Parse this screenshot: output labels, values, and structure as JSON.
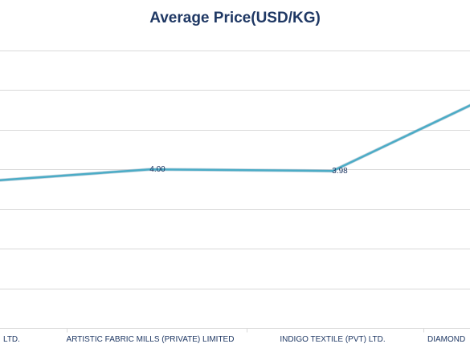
{
  "chart_data": {
    "type": "line",
    "title": "Average Price(USD/KG)",
    "xlabel": "",
    "ylabel": "",
    "categories": [
      "LTD.",
      "ARTISTIC FABRIC MILLS (PRIVATE) LIMITED",
      "INDIGO TEXTILE (PVT) LTD.",
      "DIAMOND"
    ],
    "series": [
      {
        "values": [
          3.86,
          4.0,
          3.98,
          4.82
        ],
        "data_labels": [
          "",
          "4.00",
          "3.98",
          ""
        ],
        "color": "#4bacc6"
      }
    ],
    "ylim": [
      2.0,
      5.6
    ],
    "gridlines": [
      2.0,
      2.5,
      3.0,
      3.5,
      4.0,
      4.5,
      5.0,
      5.5
    ],
    "grid": true,
    "legend": "none"
  }
}
